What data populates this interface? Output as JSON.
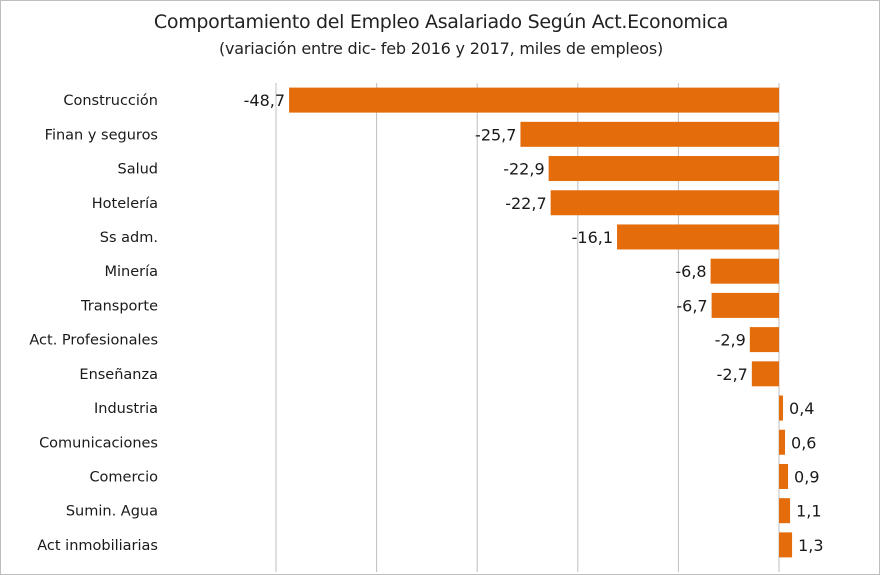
{
  "chart_data": {
    "type": "bar",
    "orientation": "horizontal",
    "title": "Comportamiento del Empleo Asalariado Según Act.Economica",
    "subtitle": "(variación entre dic- feb 2016 y 2017, miles de empleos)",
    "xlabel": "",
    "ylabel": "",
    "categories": [
      "Construcción",
      "Finan y seguros",
      "Salud",
      "Hotelería",
      "Ss adm.",
      "Minería",
      "Transporte",
      "Act. Profesionales",
      "Enseñanza",
      "Industria",
      "Comunicaciones",
      "Comercio",
      "Sumin. Agua",
      "Act inmobiliarias"
    ],
    "values": [
      -48.7,
      -25.7,
      -22.9,
      -22.7,
      -16.1,
      -6.8,
      -6.7,
      -2.9,
      -2.7,
      0.4,
      0.6,
      0.9,
      1.1,
      1.3
    ],
    "value_labels": [
      "-48,7",
      "-25,7",
      "-22,9",
      "-22,7",
      "-16,1",
      "-6,8",
      "-6,7",
      "-2,9",
      "-2,7",
      "0,4",
      "0,6",
      "0,9",
      "1,1",
      "1,3"
    ],
    "xlim": [
      -50,
      10
    ],
    "gridlines": [
      -50,
      -40,
      -30,
      -20,
      -10,
      0,
      10
    ],
    "grid": true,
    "legend": "none",
    "bar_color": "#e46c0a"
  }
}
